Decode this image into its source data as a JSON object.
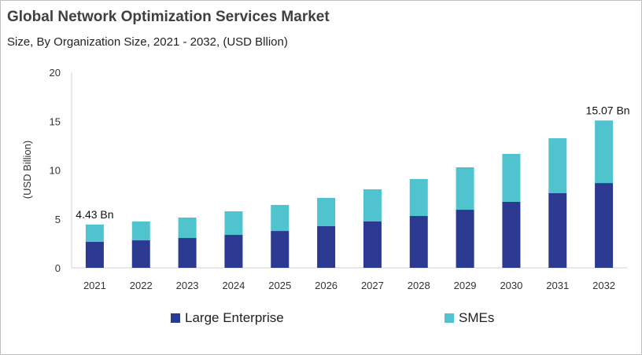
{
  "chart_data": {
    "type": "bar",
    "stacked": true,
    "title": "Global Network Optimization Services Market",
    "subtitle": "Size, By Organization Size, 2021 - 2032, (USD Bllion)",
    "ylabel": "(USD Billion)",
    "xlabel": "",
    "ylim": [
      0,
      20
    ],
    "yticks": [
      0,
      5,
      10,
      15,
      20
    ],
    "grid": false,
    "legend_placement": "bottom",
    "categories": [
      "2021",
      "2022",
      "2023",
      "2024",
      "2025",
      "2026",
      "2027",
      "2028",
      "2029",
      "2030",
      "2031",
      "2032"
    ],
    "series": [
      {
        "name": "Large Enterprise",
        "color": "#2b3990",
        "values": [
          2.65,
          2.81,
          3.05,
          3.37,
          3.77,
          4.26,
          4.74,
          5.3,
          5.94,
          6.75,
          7.63,
          8.67
        ]
      },
      {
        "name": "SMEs",
        "color": "#4fc4cf",
        "values": [
          1.78,
          1.93,
          2.09,
          2.41,
          2.66,
          2.89,
          3.29,
          3.78,
          4.34,
          4.9,
          5.62,
          6.4
        ]
      }
    ],
    "annotations": [
      {
        "category": "2021",
        "text": "4.43 Bn"
      },
      {
        "category": "2032",
        "text": "15.07 Bn"
      }
    ]
  }
}
